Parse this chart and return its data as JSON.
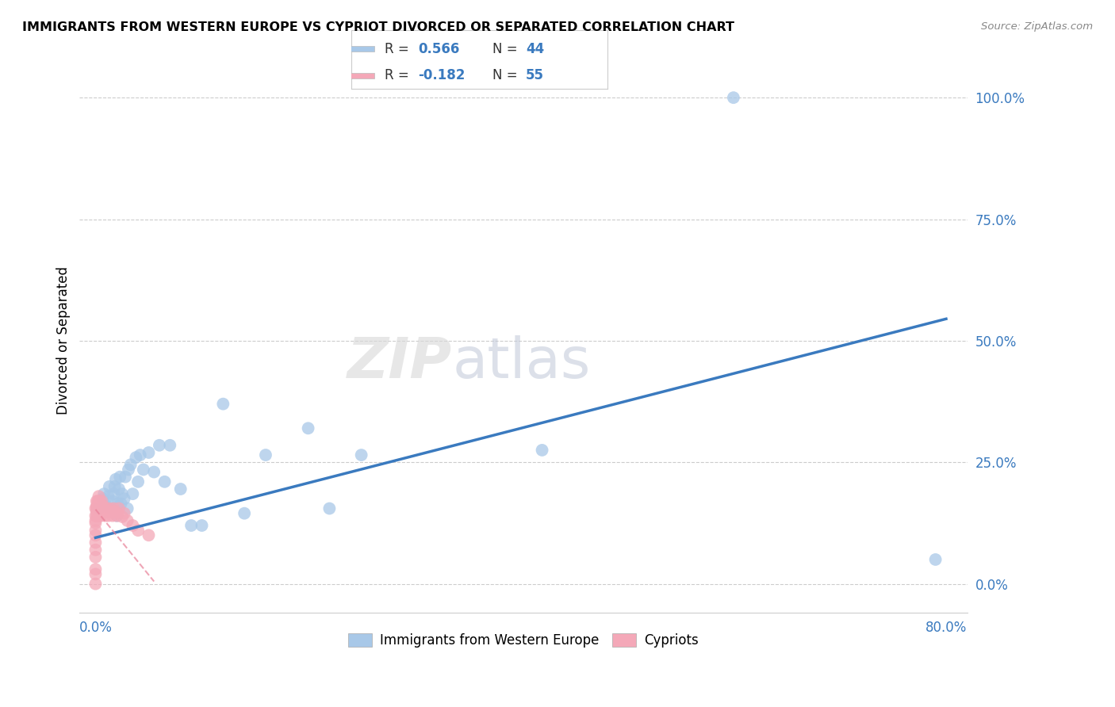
{
  "title": "IMMIGRANTS FROM WESTERN EUROPE VS CYPRIOT DIVORCED OR SEPARATED CORRELATION CHART",
  "source": "Source: ZipAtlas.com",
  "ylabel": "Divorced or Separated",
  "ytick_labels": [
    "0.0%",
    "25.0%",
    "50.0%",
    "75.0%",
    "100.0%"
  ],
  "ytick_vals": [
    0.0,
    0.25,
    0.5,
    0.75,
    1.0
  ],
  "legend_blue_r": "0.566",
  "legend_blue_n": "44",
  "legend_pink_r": "-0.182",
  "legend_pink_n": "55",
  "blue_color": "#a8c8e8",
  "pink_color": "#f4a8b8",
  "blue_line_color": "#3a7abf",
  "pink_line_color": "#e88098",
  "blue_scatter_x": [
    0.003,
    0.007,
    0.008,
    0.01,
    0.012,
    0.013,
    0.015,
    0.016,
    0.017,
    0.018,
    0.019,
    0.02,
    0.021,
    0.022,
    0.023,
    0.024,
    0.025,
    0.027,
    0.028,
    0.03,
    0.031,
    0.033,
    0.035,
    0.038,
    0.04,
    0.042,
    0.045,
    0.05,
    0.055,
    0.06,
    0.065,
    0.07,
    0.08,
    0.09,
    0.1,
    0.12,
    0.14,
    0.16,
    0.2,
    0.22,
    0.25,
    0.42,
    0.6,
    0.79
  ],
  "blue_scatter_y": [
    0.155,
    0.175,
    0.185,
    0.16,
    0.18,
    0.2,
    0.155,
    0.17,
    0.185,
    0.2,
    0.215,
    0.14,
    0.165,
    0.195,
    0.22,
    0.165,
    0.185,
    0.175,
    0.22,
    0.155,
    0.235,
    0.245,
    0.185,
    0.26,
    0.21,
    0.265,
    0.235,
    0.27,
    0.23,
    0.285,
    0.21,
    0.285,
    0.195,
    0.12,
    0.12,
    0.37,
    0.145,
    0.265,
    0.32,
    0.155,
    0.265,
    0.275,
    1.0,
    0.05
  ],
  "pink_scatter_x": [
    0.0,
    0.0,
    0.0,
    0.0,
    0.0,
    0.0,
    0.0,
    0.0,
    0.0,
    0.0,
    0.0,
    0.0,
    0.001,
    0.001,
    0.001,
    0.001,
    0.001,
    0.002,
    0.002,
    0.002,
    0.002,
    0.002,
    0.003,
    0.003,
    0.003,
    0.003,
    0.003,
    0.004,
    0.004,
    0.004,
    0.005,
    0.005,
    0.006,
    0.006,
    0.007,
    0.008,
    0.009,
    0.01,
    0.01,
    0.011,
    0.012,
    0.013,
    0.015,
    0.016,
    0.017,
    0.018,
    0.02,
    0.021,
    0.022,
    0.025,
    0.027,
    0.03,
    0.035,
    0.04,
    0.05
  ],
  "pink_scatter_y": [
    0.0,
    0.02,
    0.03,
    0.055,
    0.07,
    0.085,
    0.1,
    0.11,
    0.125,
    0.13,
    0.14,
    0.155,
    0.14,
    0.15,
    0.155,
    0.16,
    0.17,
    0.14,
    0.15,
    0.155,
    0.16,
    0.17,
    0.14,
    0.15,
    0.16,
    0.17,
    0.18,
    0.15,
    0.16,
    0.17,
    0.14,
    0.16,
    0.15,
    0.17,
    0.16,
    0.15,
    0.14,
    0.15,
    0.155,
    0.15,
    0.14,
    0.155,
    0.148,
    0.14,
    0.155,
    0.148,
    0.14,
    0.145,
    0.155,
    0.138,
    0.145,
    0.13,
    0.12,
    0.11,
    0.1
  ],
  "blue_line_x": [
    0.0,
    0.8
  ],
  "blue_line_y": [
    0.095,
    0.545
  ],
  "pink_line_x": [
    0.0,
    0.055
  ],
  "pink_line_y": [
    0.153,
    0.005
  ],
  "xlim": [
    -0.015,
    0.82
  ],
  "ylim": [
    -0.06,
    1.06
  ],
  "xtick_positions": [
    0.0,
    0.2,
    0.4,
    0.6,
    0.8
  ],
  "xtick_label_left": "0.0%",
  "xtick_label_right": "80.0%",
  "axis_color": "#3a7abf",
  "watermark_text": "ZIPatlas"
}
